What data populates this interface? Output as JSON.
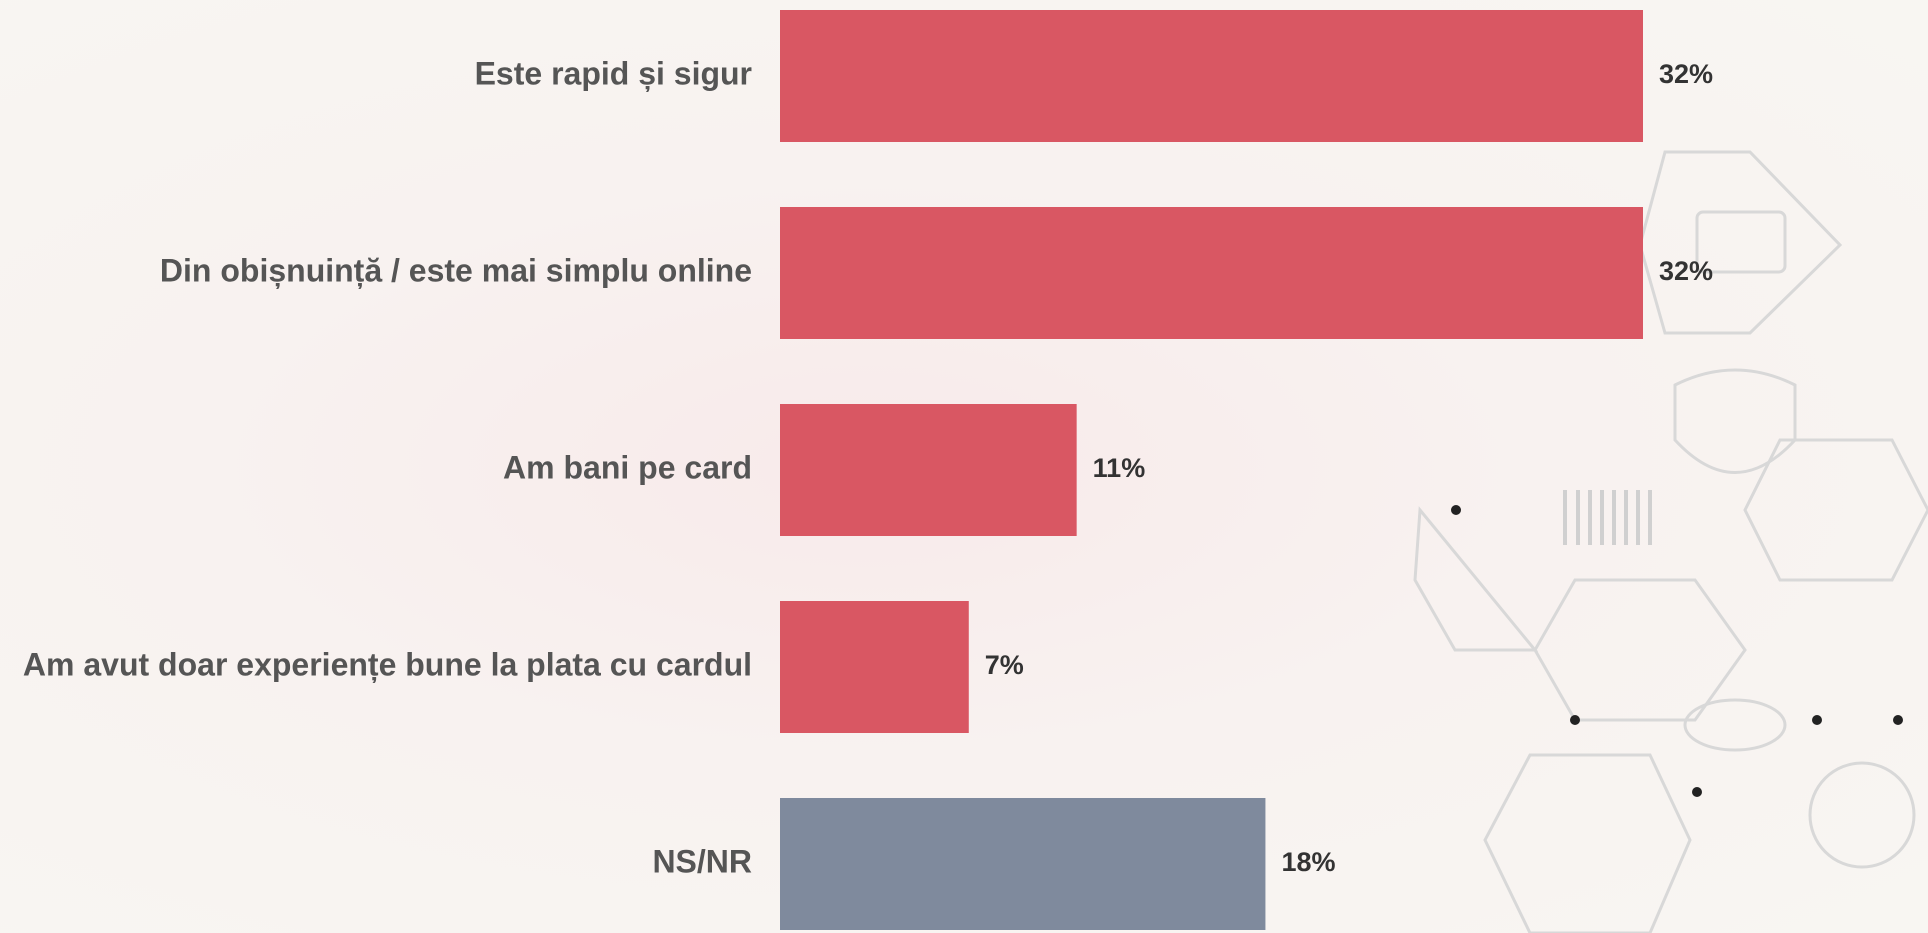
{
  "chart_data": {
    "type": "hbar",
    "categories": [
      "Este rapid și sigur",
      "Din obișnuință / este mai simplu online",
      "Am bani pe card",
      "Am avut doar experiențe bune la plata cu cardul",
      "NS/NR"
    ],
    "values": [
      32,
      32,
      11,
      7,
      18
    ],
    "value_labels": [
      "32%",
      "32%",
      "11%",
      "7%",
      "18%"
    ],
    "colors": [
      "#d95763",
      "#d95763",
      "#d95763",
      "#d95763",
      "#7f8a9d"
    ]
  }
}
